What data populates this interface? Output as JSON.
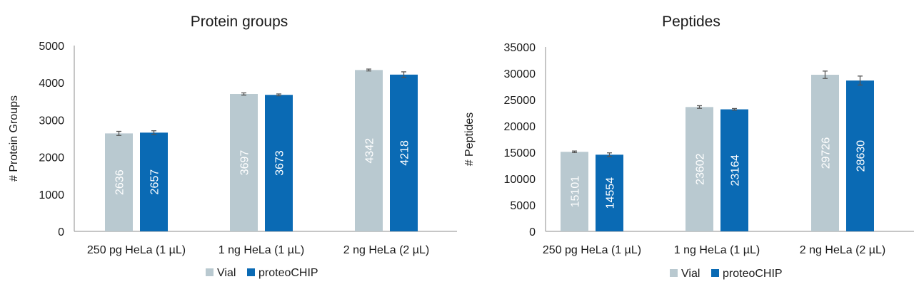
{
  "chart_data": [
    {
      "type": "bar",
      "title": "Protein groups",
      "ylabel": "# Protein Groups",
      "xlabel": "",
      "categories": [
        "250 pg HeLa (1 µL)",
        "1 ng HeLa (1 µL)",
        "2 ng HeLa (2 µL)"
      ],
      "series": [
        {
          "name": "Vial",
          "color": "#b9c9d0",
          "values": [
            2636,
            3697,
            4342
          ],
          "errors": [
            55,
            30,
            25
          ]
        },
        {
          "name": "proteoCHIP",
          "color": "#0a6ab4",
          "values": [
            2657,
            3673,
            4218
          ],
          "errors": [
            50,
            25,
            75
          ]
        }
      ],
      "ylim": [
        0,
        5000
      ],
      "yticks": [
        0,
        1000,
        2000,
        3000,
        4000,
        5000
      ],
      "grid": false,
      "legend": "bottom",
      "data_labels": true
    },
    {
      "type": "bar",
      "title": "Peptides",
      "ylabel": "# Peptides",
      "xlabel": "",
      "categories": [
        "250 pg HeLa (1 µL)",
        "1 ng HeLa (1 µL)",
        "2 ng HeLa (2 µL)"
      ],
      "series": [
        {
          "name": "Vial",
          "color": "#b9c9d0",
          "values": [
            15101,
            23602,
            29726
          ],
          "errors": [
            150,
            250,
            700
          ]
        },
        {
          "name": "proteoCHIP",
          "color": "#0a6ab4",
          "values": [
            14554,
            23164,
            28630
          ],
          "errors": [
            350,
            150,
            850
          ]
        }
      ],
      "ylim": [
        0,
        35000
      ],
      "yticks": [
        0,
        5000,
        10000,
        15000,
        20000,
        25000,
        30000,
        35000
      ],
      "grid": false,
      "legend": "bottom",
      "data_labels": true
    }
  ]
}
